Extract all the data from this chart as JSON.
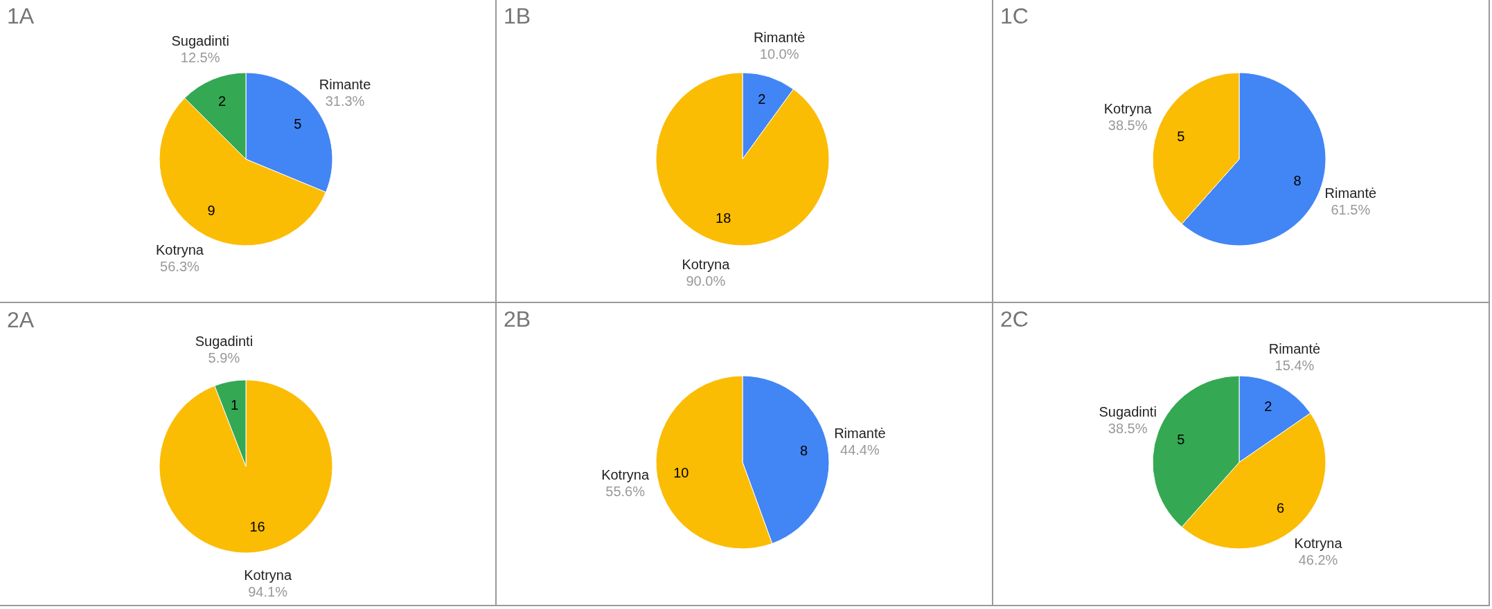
{
  "chart_data": [
    {
      "type": "pie",
      "title": "1A",
      "categories": [
        "Rimante",
        "Kotryna",
        "Sugadinti"
      ],
      "values": [
        5,
        9,
        2
      ],
      "colors": [
        "#4285f4",
        "#fbbc04",
        "#34a853"
      ],
      "data_labels": true,
      "annotations": [
        {
          "text": "31.3%",
          "x": "Rimante"
        },
        {
          "text": "56.3%",
          "x": "Kotryna"
        },
        {
          "text": "12.5%",
          "x": "Sugadinti"
        }
      ]
    },
    {
      "type": "pie",
      "title": "1B",
      "categories": [
        "Rimantė",
        "Kotryna"
      ],
      "values": [
        2,
        18
      ],
      "colors": [
        "#4285f4",
        "#fbbc04"
      ],
      "data_labels": true,
      "annotations": [
        {
          "text": "10.0%",
          "x": "Rimantė"
        },
        {
          "text": "90.0%",
          "x": "Kotryna"
        }
      ]
    },
    {
      "type": "pie",
      "title": "1C",
      "categories": [
        "Rimantė",
        "Kotryna"
      ],
      "values": [
        8,
        5
      ],
      "colors": [
        "#4285f4",
        "#fbbc04"
      ],
      "data_labels": true,
      "annotations": [
        {
          "text": "61.5%",
          "x": "Rimantė"
        },
        {
          "text": "38.5%",
          "x": "Kotryna"
        }
      ]
    },
    {
      "type": "pie",
      "title": "2A",
      "categories": [
        "Kotryna",
        "Sugadinti"
      ],
      "values": [
        16,
        1
      ],
      "colors": [
        "#fbbc04",
        "#34a853"
      ],
      "data_labels": true,
      "annotations": [
        {
          "text": "94.1%",
          "x": "Kotryna"
        },
        {
          "text": "5.9%",
          "x": "Sugadinti"
        }
      ]
    },
    {
      "type": "pie",
      "title": "2B",
      "categories": [
        "Rimantė",
        "Kotryna"
      ],
      "values": [
        8,
        10
      ],
      "colors": [
        "#4285f4",
        "#fbbc04"
      ],
      "data_labels": true,
      "annotations": [
        {
          "text": "44.4%",
          "x": "Rimantė"
        },
        {
          "text": "55.6%",
          "x": "Kotryna"
        }
      ]
    },
    {
      "type": "pie",
      "title": "2C",
      "categories": [
        "Rimantė",
        "Kotryna",
        "Sugadinti"
      ],
      "values": [
        2,
        6,
        5
      ],
      "colors": [
        "#4285f4",
        "#fbbc04",
        "#34a853"
      ],
      "data_labels": true,
      "annotations": [
        {
          "text": "15.4%",
          "x": "Rimantė"
        },
        {
          "text": "46.2%",
          "x": "Kotryna"
        },
        {
          "text": "38.5%",
          "x": "Sugadinti"
        }
      ]
    }
  ]
}
